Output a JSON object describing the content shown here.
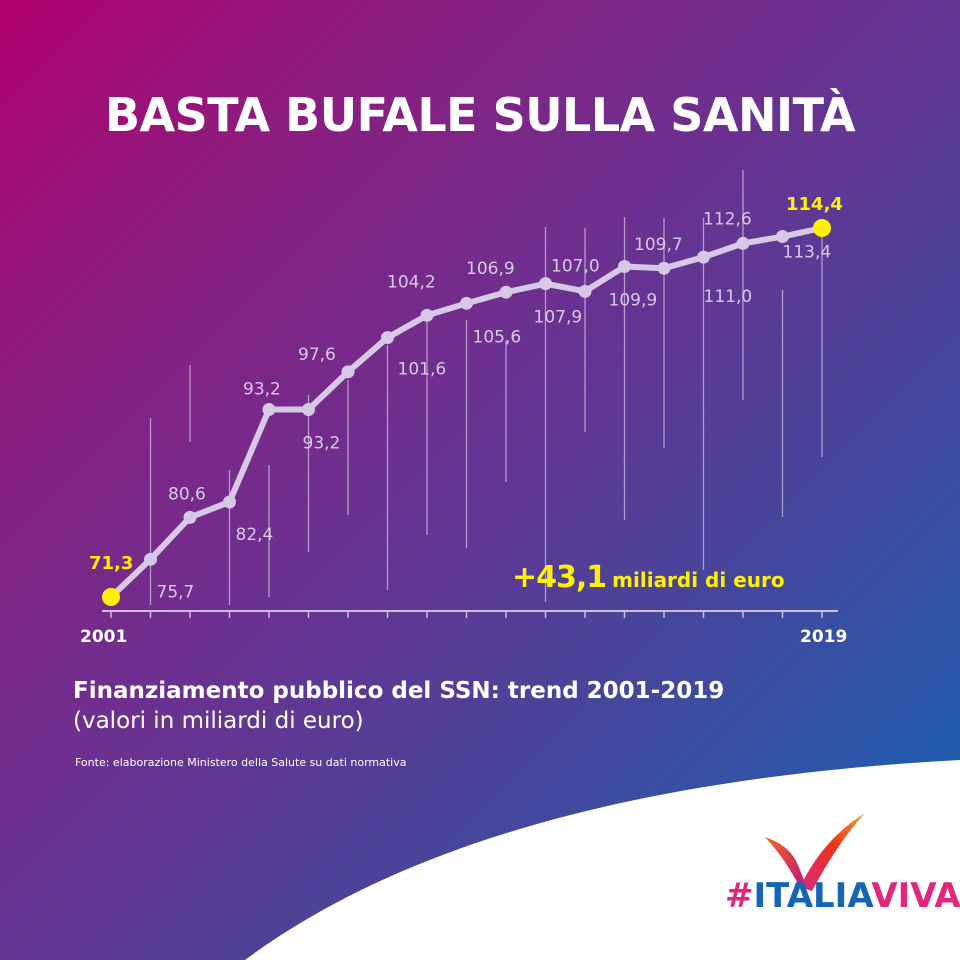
{
  "header": {
    "title": "BASTA BUFALE SULLA SANITÀ"
  },
  "colors": {
    "gradient_start": "#b0006f",
    "gradient_end": "#0a64b8",
    "line": "#d6c8e6",
    "highlight": "#fff200",
    "logo_pink": "#e0267d",
    "logo_blue": "#1565b5"
  },
  "chart_data": {
    "type": "line",
    "title": "Finanziamento pubblico del SSN: trend 2001-2019",
    "subtitle": "(valori in miliardi di euro)",
    "xlabel": "",
    "ylabel": "miliardi di euro",
    "x": [
      2001,
      2002,
      2003,
      2004,
      2005,
      2006,
      2007,
      2008,
      2009,
      2010,
      2011,
      2012,
      2013,
      2014,
      2015,
      2016,
      2017,
      2018,
      2019
    ],
    "values": [
      71.3,
      75.7,
      80.6,
      82.4,
      93.2,
      93.2,
      97.6,
      101.6,
      104.2,
      105.6,
      106.9,
      107.9,
      107.0,
      109.9,
      109.7,
      111.0,
      112.6,
      113.4,
      114.4
    ],
    "value_labels": [
      "71,3",
      "75,7",
      "80,6",
      "82,4",
      "93,2",
      "93,2",
      "97,6",
      "101,6",
      "104,2",
      "105,6",
      "106,9",
      "107,9",
      "107,0",
      "109,9",
      "109,7",
      "111,0",
      "112,6",
      "113,4",
      "114,4"
    ],
    "x_tick_labels_shown": [
      "2001",
      "2019"
    ],
    "highlighted_points": [
      2001,
      2019
    ],
    "annotation": "+43,1 miliardi di euro",
    "grid": false,
    "legend": "none"
  },
  "annotation": {
    "amount": "+43,1",
    "unit": "miliardi di euro"
  },
  "axis": {
    "start_label": "2001",
    "end_label": "2019"
  },
  "caption": {
    "line1": "Finanziamento pubblico del SSN: trend 2001-2019",
    "line2": "(valori in miliardi di euro)"
  },
  "source": "Fonte: elaborazione Ministero della Salute su dati normativa",
  "logo": {
    "hash": "#",
    "italia": "ITALIA",
    "viva": "VIVA"
  }
}
